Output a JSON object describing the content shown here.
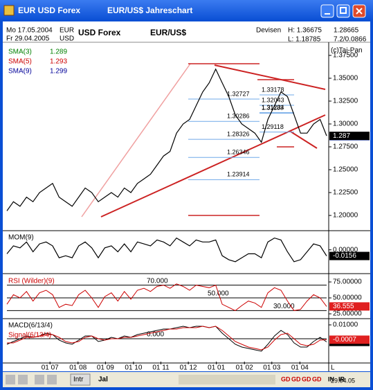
{
  "window": {
    "title": "EUR USD Forex",
    "subtitle": "EUR/US$ Jahreschart"
  },
  "header": {
    "from": "Mo 17.05.2004",
    "to": "Fr 29.04.2005",
    "cur1": "EUR",
    "cur2": "USD",
    "name": "USD Forex",
    "symbol": "EUR/US$",
    "market": "Devisen",
    "high": "H: 1.36675",
    "low": "L: 1.18785",
    "last": "1.28665",
    "change": "7.2/0.0866",
    "copyright": "(c)Tai-Pan"
  },
  "toolbar": {
    "tab1": "Intr",
    "tab2": "Jal",
    "buttons": [
      "GD",
      "GD",
      "GD",
      "GD",
      "IN",
      "IR"
    ],
    "last_label": "L",
    "date": "29.04.05"
  },
  "chart_data": [
    {
      "type": "line",
      "color": "#000000",
      "values": [
        1.205,
        1.215,
        1.21,
        1.22,
        1.215,
        1.225,
        1.23,
        1.235,
        1.22,
        1.215,
        1.21,
        1.22,
        1.23,
        1.225,
        1.215,
        1.22,
        1.225,
        1.22,
        1.23,
        1.225,
        1.235,
        1.24,
        1.245,
        1.255,
        1.265,
        1.27,
        1.29,
        1.3,
        1.305,
        1.32,
        1.335,
        1.345,
        1.36,
        1.345,
        1.33,
        1.31,
        1.3,
        1.295,
        1.29,
        1.28,
        1.305,
        1.32,
        1.335,
        1.33,
        1.31,
        1.29,
        1.29,
        1.3,
        1.305,
        1.287
      ],
      "xlim": [
        0,
        49
      ],
      "ylim": [
        1.1856,
        1.3886
      ],
      "yticks": [
        {
          "value": 1.2,
          "label": "1.20000"
        },
        {
          "value": 1.225,
          "label": "1.22500"
        },
        {
          "value": 1.25,
          "label": "1.25000"
        },
        {
          "value": 1.275,
          "label": "1.27500"
        },
        {
          "value": 1.3,
          "label": "1.30000"
        },
        {
          "value": 1.325,
          "label": "1.32500"
        },
        {
          "value": 1.35,
          "label": "1.35000"
        },
        {
          "value": 1.375,
          "label": "1.37500"
        }
      ],
      "last_value": 1.28665,
      "legend": [
        {
          "name": "SMA(3)",
          "value": 1.289,
          "color": "#008000"
        },
        {
          "name": "SMA(5)",
          "value": 1.293,
          "color": "#cc0000"
        },
        {
          "name": "SMA(9)",
          "value": 1.299,
          "color": "#000099"
        }
      ],
      "fib_levels": [
        1.32727,
        1.30286,
        1.28326,
        1.26346,
        1.23914
      ],
      "fib_levels_2": [
        1.33178,
        1.32043,
        1.31183,
        1.31234,
        1.29118
      ]
    },
    {
      "type": "line",
      "title": "MOM(9)",
      "color": "#000000",
      "values": [
        -0.01,
        0.01,
        0.005,
        0.02,
        -0.005,
        0.015,
        0.02,
        0.01,
        -0.02,
        -0.015,
        -0.02,
        0.01,
        0.02,
        0.005,
        -0.02,
        0.005,
        0.01,
        -0.005,
        0.015,
        -0.005,
        0.02,
        0.015,
        0.01,
        0.025,
        0.02,
        0.01,
        0.03,
        0.02,
        0.01,
        0.025,
        0.02,
        0.02,
        0.025,
        -0.015,
        -0.025,
        -0.03,
        -0.02,
        -0.01,
        -0.01,
        -0.02,
        0.02,
        0.03,
        0.025,
        -0.005,
        -0.03,
        -0.025,
        -0.005,
        0.015,
        0.01,
        -0.0156
      ],
      "xlim": [
        0,
        49
      ],
      "ylim": [
        -0.055,
        0.045
      ],
      "yticks": [
        {
          "value": 0,
          "label": "0.00000"
        }
      ]
    },
    {
      "type": "line",
      "series": [
        {
          "name": "RSI (Wilder)(9)",
          "color": "#cc0000",
          "values": [
            40,
            55,
            50,
            60,
            45,
            58,
            62,
            55,
            35,
            40,
            38,
            55,
            62,
            50,
            35,
            52,
            58,
            45,
            60,
            48,
            62,
            65,
            60,
            68,
            70,
            65,
            72,
            68,
            62,
            70,
            68,
            66,
            70,
            40,
            35,
            30,
            38,
            45,
            42,
            35,
            58,
            66,
            62,
            45,
            30,
            32,
            45,
            55,
            50,
            36.555
          ]
        }
      ],
      "xlim": [
        0,
        49
      ],
      "ylim": [
        19.6,
        84.8
      ],
      "yticks": [
        {
          "value": 25,
          "label": "25.00000"
        },
        {
          "value": 50,
          "label": "50.00000"
        },
        {
          "value": 75,
          "label": "75.00000"
        }
      ],
      "levels": [
        {
          "value": 70,
          "label": "70.000"
        },
        {
          "value": 50,
          "label": "50.000"
        },
        {
          "value": 30,
          "label": "30.000"
        }
      ]
    },
    {
      "type": "line",
      "series": [
        {
          "name": "MACD(6/13/4)",
          "color": "#000000",
          "values": [
            -0.004,
            -0.002,
            0,
            0.002,
            0.001,
            0.002,
            0.004,
            0.003,
            -0.001,
            -0.003,
            -0.004,
            -0.001,
            0.002,
            0.002,
            -0.002,
            -0.001,
            0.001,
            0,
            0.002,
            0.001,
            0.003,
            0.004,
            0.005,
            0.006,
            0.007,
            0.007,
            0.008,
            0.009,
            0.008,
            0.009,
            0.009,
            0.008,
            0.009,
            0.004,
            0,
            -0.004,
            -0.006,
            -0.007,
            -0.008,
            -0.009,
            -0.004,
            0.002,
            0.006,
            0.003,
            -0.003,
            -0.006,
            -0.006,
            -0.002,
            0.001,
            -0.0023
          ]
        },
        {
          "name": "Signal(6/13/4)",
          "color": "#cc0000",
          "values": [
            -0.003,
            -0.003,
            -0.001,
            0.001,
            0.001,
            0.002,
            0.003,
            0.003,
            0.001,
            -0.002,
            -0.003,
            -0.002,
            0.001,
            0.002,
            0,
            -0.001,
            0,
            0,
            0.001,
            0.001,
            0.002,
            0.003,
            0.004,
            0.005,
            0.006,
            0.007,
            0.007,
            0.008,
            0.008,
            0.008,
            0.009,
            0.008,
            0.009,
            0.006,
            0.002,
            -0.002,
            -0.004,
            -0.006,
            -0.007,
            -0.008,
            -0.006,
            -0.001,
            0.003,
            0.004,
            0,
            -0.004,
            -0.005,
            -0.004,
            -0.001,
            -0.0007
          ]
        }
      ],
      "xlim": [
        0,
        49
      ],
      "ylim": [
        -0.0165,
        0.0135
      ],
      "yticks": [
        {
          "value": 0.01,
          "label": "0.01000"
        }
      ],
      "levels": [
        {
          "value": 0,
          "label": "0.000"
        }
      ],
      "xticks": [
        {
          "value": 6.6,
          "label": "01 07"
        },
        {
          "value": 10.9,
          "label": "01 08"
        },
        {
          "value": 15.1,
          "label": "01 09"
        },
        {
          "value": 19.4,
          "label": "01 10"
        },
        {
          "value": 23.6,
          "label": "01 11"
        },
        {
          "value": 27.8,
          "label": "01 12"
        },
        {
          "value": 32.1,
          "label": "01 01"
        },
        {
          "value": 36.4,
          "label": "01 02"
        },
        {
          "value": 40.6,
          "label": "01 03"
        },
        {
          "value": 44.9,
          "label": "01 04"
        }
      ]
    }
  ]
}
